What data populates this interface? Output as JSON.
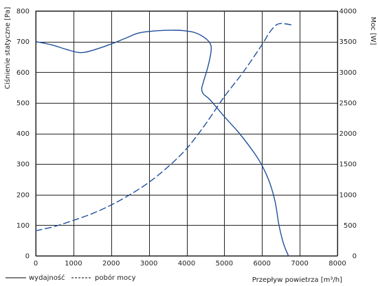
{
  "chart_data": {
    "type": "line",
    "title": "",
    "xlabel": "Przepływ powietrza [m³/h]",
    "ylabel_left": "Ciśnienie statyczne [Pa]",
    "ylabel_right": "Moc [W]",
    "xlim": [
      0,
      8000
    ],
    "ylim_left": [
      0,
      800
    ],
    "ylim_right": [
      0,
      4000
    ],
    "x_ticks": [
      0,
      1000,
      2000,
      3000,
      4000,
      5000,
      6000,
      7000,
      8000
    ],
    "y_left_ticks": [
      0,
      100,
      200,
      300,
      400,
      500,
      600,
      700,
      800
    ],
    "y_right_ticks": [
      0,
      500,
      1000,
      1500,
      2000,
      2500,
      3000,
      3500,
      4000
    ],
    "grid": true,
    "legend_position": "bottom-left",
    "series_color": "#1f4e9a",
    "series": [
      {
        "name": "wydajność",
        "axis": "left",
        "style": "solid",
        "points": [
          [
            0,
            700
          ],
          [
            400,
            690
          ],
          [
            800,
            675
          ],
          [
            1100,
            665
          ],
          [
            1300,
            665
          ],
          [
            1600,
            675
          ],
          [
            2000,
            692
          ],
          [
            2400,
            712
          ],
          [
            2700,
            727
          ],
          [
            3000,
            733
          ],
          [
            3300,
            736
          ],
          [
            3600,
            737
          ],
          [
            3900,
            736
          ],
          [
            4200,
            730
          ],
          [
            4450,
            715
          ],
          [
            4620,
            695
          ],
          [
            4650,
            670
          ],
          [
            4570,
            620
          ],
          [
            4450,
            570
          ],
          [
            4400,
            545
          ],
          [
            4450,
            528
          ],
          [
            4620,
            510
          ],
          [
            5000,
            455
          ],
          [
            5400,
            400
          ],
          [
            5800,
            335
          ],
          [
            6000,
            295
          ],
          [
            6200,
            240
          ],
          [
            6350,
            175
          ],
          [
            6450,
            100
          ],
          [
            6570,
            40
          ],
          [
            6700,
            0
          ]
        ]
      },
      {
        "name": "pobór mocy",
        "axis": "right",
        "style": "dashed",
        "points": [
          [
            0,
            410
          ],
          [
            500,
            480
          ],
          [
            1000,
            580
          ],
          [
            1500,
            690
          ],
          [
            2000,
            830
          ],
          [
            2500,
            1000
          ],
          [
            3000,
            1200
          ],
          [
            3500,
            1450
          ],
          [
            4000,
            1750
          ],
          [
            4500,
            2150
          ],
          [
            5000,
            2600
          ],
          [
            5500,
            3000
          ],
          [
            6000,
            3450
          ],
          [
            6200,
            3650
          ],
          [
            6400,
            3780
          ],
          [
            6600,
            3790
          ],
          [
            6800,
            3770
          ]
        ]
      }
    ]
  }
}
